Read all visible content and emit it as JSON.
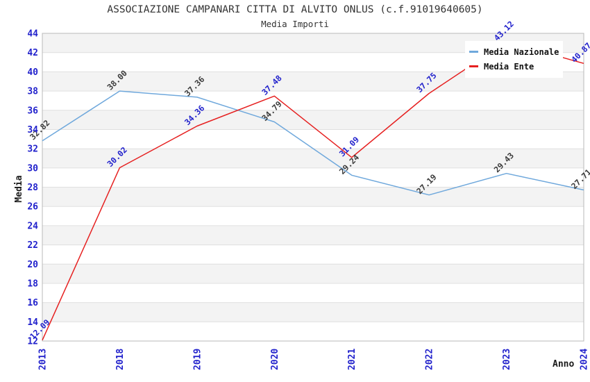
{
  "header": {
    "title": "ASSOCIAZIONE CAMPANARI CITTA DI ALVITO ONLUS (c.f.91019640605)",
    "subtitle": "Media Importi"
  },
  "chart_data": {
    "type": "line",
    "title": "ASSOCIAZIONE CAMPANARI CITTA DI ALVITO ONLUS (c.f.91019640605)",
    "subtitle": "Media Importi",
    "xlabel": "Anno",
    "ylabel": "Media",
    "categories": [
      "2013",
      "2018",
      "2019",
      "2020",
      "2021",
      "2022",
      "2023",
      "2024"
    ],
    "ylim": [
      12,
      44
    ],
    "ytick_step": 2,
    "grid": "horizontal, alternating shaded bands every 2 units",
    "legend_position": "top-right, inside plot",
    "series": [
      {
        "name": "Media Nazionale",
        "color": "#6FA8DC",
        "label_color": "#3C3C3C",
        "values": [
          32.82,
          38.0,
          37.36,
          34.79,
          29.24,
          27.19,
          29.43,
          27.71
        ]
      },
      {
        "name": "Media Ente",
        "color": "#E62020",
        "label_color": "#2222CC",
        "values": [
          12.09,
          30.02,
          34.36,
          37.48,
          31.09,
          37.75,
          43.12,
          40.87
        ]
      }
    ],
    "colors": {
      "band": "#F3F3F3",
      "grid": "#E0E0E0",
      "border": "#B8B8B8",
      "tick_label": "#2222CC",
      "title_text": "#333333"
    }
  }
}
